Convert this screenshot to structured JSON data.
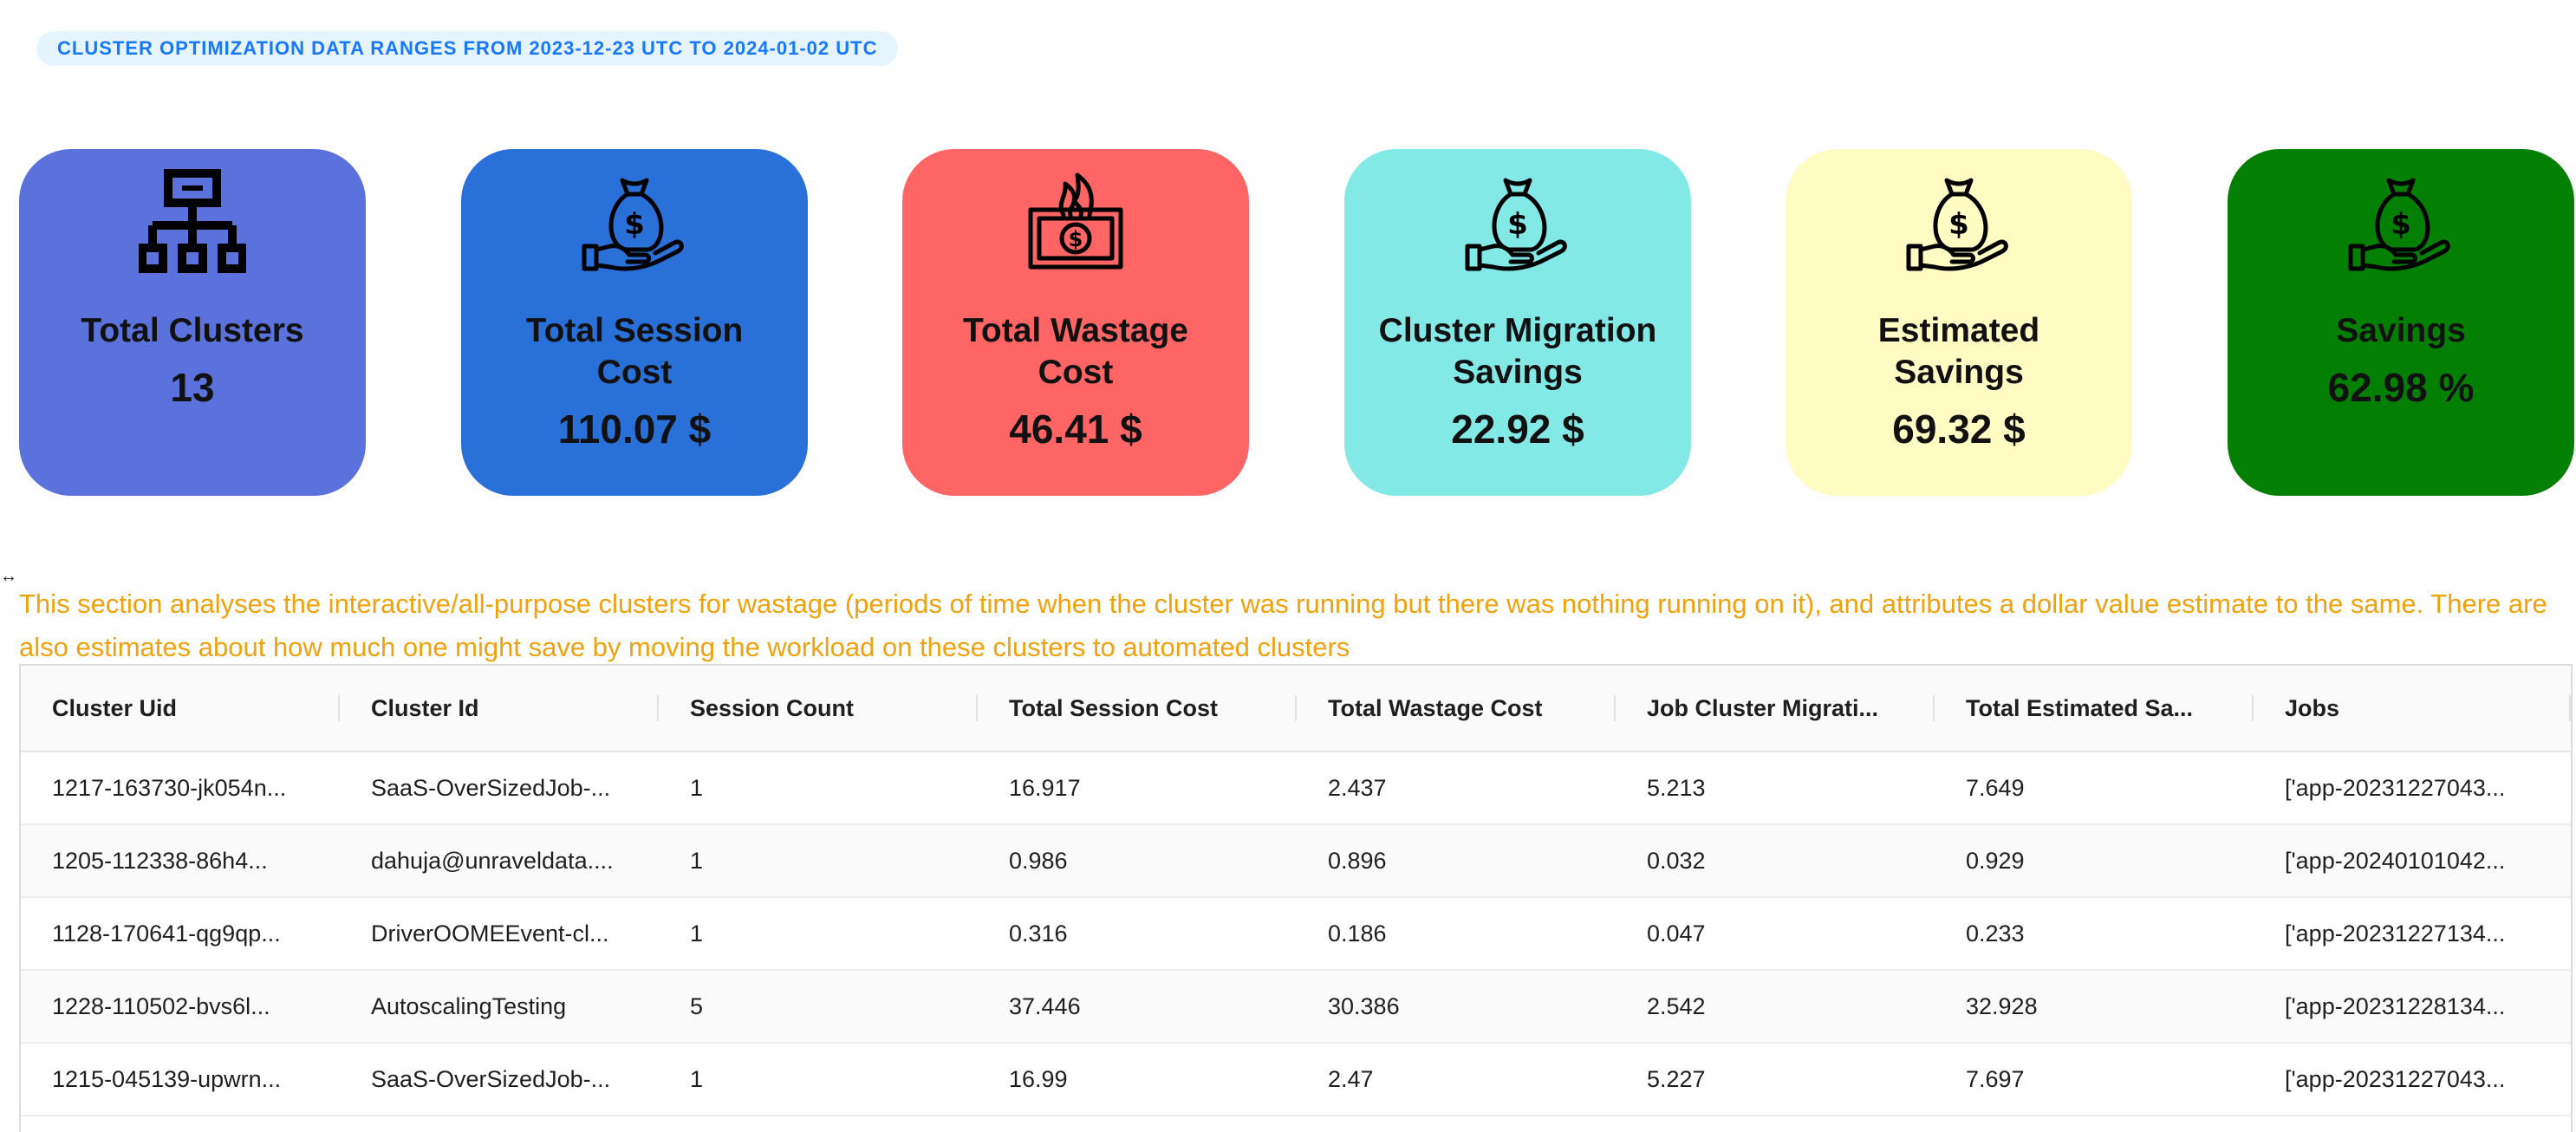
{
  "header": {
    "range_text": "CLUSTER OPTIMIZATION DATA RANGES FROM 2023-12-23 UTC TO 2024-01-02 UTC"
  },
  "cards": [
    {
      "title": "Total Clusters",
      "value": "13",
      "icon": "cluster-hierarchy-icon",
      "color": "#5b72dc"
    },
    {
      "title": "Total Session Cost",
      "value": "110.07 $",
      "icon": "money-bag-hand-icon",
      "color": "#2970d9"
    },
    {
      "title": "Total Wastage Cost",
      "value": "46.41 $",
      "icon": "burning-money-icon",
      "color": "#ff6565"
    },
    {
      "title": "Cluster Migration Savings",
      "value": "22.92 $",
      "icon": "money-bag-hand-icon",
      "color": "#82e9e6"
    },
    {
      "title": "Estimated Savings",
      "value": "69.32 $",
      "icon": "money-bag-hand-icon",
      "color": "#fefbc3"
    },
    {
      "title": "Savings",
      "value": "62.98 %",
      "icon": "money-bag-hand-icon",
      "color": "#038003"
    }
  ],
  "description": "This section analyses the interactive/all-purpose clusters for wastage (periods of time when the cluster was running but there was nothing running on it), and attributes a dollar value estimate to the same. There are also estimates about how much one might save by moving the workload on these clusters to automated clusters",
  "table": {
    "columns": [
      "Cluster Uid",
      "Cluster Id",
      "Session Count",
      "Total Session Cost",
      "Total Wastage Cost",
      "Job Cluster Migrati...",
      "Total Estimated Sa...",
      "Jobs"
    ],
    "rows": [
      [
        "1217-163730-jk054n...",
        "SaaS-OverSizedJob-...",
        "1",
        "16.917",
        "2.437",
        "5.213",
        "7.649",
        "['app-20231227043..."
      ],
      [
        "1205-112338-86h4...",
        "dahuja@unraveldata....",
        "1",
        "0.986",
        "0.896",
        "0.032",
        "0.929",
        "['app-20240101042..."
      ],
      [
        "1128-170641-qg9qp...",
        "DriverOOMEEvent-cl...",
        "1",
        "0.316",
        "0.186",
        "0.047",
        "0.233",
        "['app-20231227134..."
      ],
      [
        "1228-110502-bvs6l...",
        "AutoscalingTesting",
        "5",
        "37.446",
        "30.386",
        "2.542",
        "32.928",
        "['app-20231228134..."
      ],
      [
        "1215-045139-upwrn...",
        "SaaS-OverSizedJob-...",
        "1",
        "16.99",
        "2.47",
        "5.227",
        "7.697",
        "['app-20231227043..."
      ]
    ]
  }
}
